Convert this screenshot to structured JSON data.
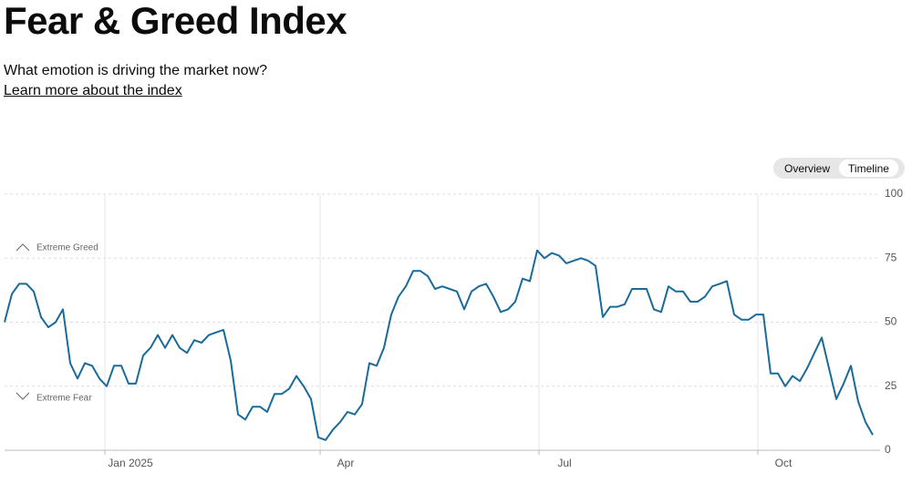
{
  "header": {
    "title": "Fear & Greed Index",
    "subtitle": "What emotion is driving the market now?",
    "link": "Learn more about the index"
  },
  "toggle": [
    "Overview",
    "Timeline"
  ],
  "chart_data": {
    "type": "line",
    "color": "#1a6a9a",
    "grid": true,
    "annotations": [
      "Extreme Greed",
      "Extreme Fear"
    ],
    "values": [
      50,
      61,
      65,
      65,
      62,
      52,
      48,
      50,
      55,
      34,
      28,
      34,
      33,
      28,
      25,
      33,
      33,
      26,
      26,
      37,
      40,
      45,
      40,
      45,
      40,
      38,
      43,
      42,
      45,
      46,
      47,
      35,
      14,
      12,
      17,
      17,
      15,
      22,
      22,
      24,
      29,
      25,
      20,
      5,
      4,
      8,
      11,
      15,
      14,
      18,
      34,
      33,
      40,
      53,
      60,
      64,
      70,
      70,
      68,
      63,
      64,
      63,
      62,
      55,
      62,
      64,
      65,
      60,
      54,
      55,
      58,
      67,
      66,
      78,
      75,
      77,
      76,
      73,
      74,
      75,
      74,
      72,
      52,
      56,
      56,
      57,
      63,
      63,
      63,
      55,
      54,
      64,
      62,
      62,
      58,
      58,
      60,
      64,
      65,
      66,
      53,
      51,
      51,
      53,
      53,
      30,
      30,
      25,
      29,
      27,
      32,
      38,
      44,
      32,
      20,
      26,
      33,
      19,
      11,
      6
    ],
    "xlim": [
      0,
      120
    ],
    "xticks": [
      {
        "value": 13.75,
        "label": "Jan 2025"
      },
      {
        "value": 43.25,
        "label": "Apr"
      },
      {
        "value": 73.25,
        "label": "Jul"
      },
      {
        "value": 103.25,
        "label": "Oct"
      }
    ],
    "ylim": [
      0,
      100
    ],
    "yticks": [
      0,
      25,
      50,
      75,
      100
    ]
  }
}
